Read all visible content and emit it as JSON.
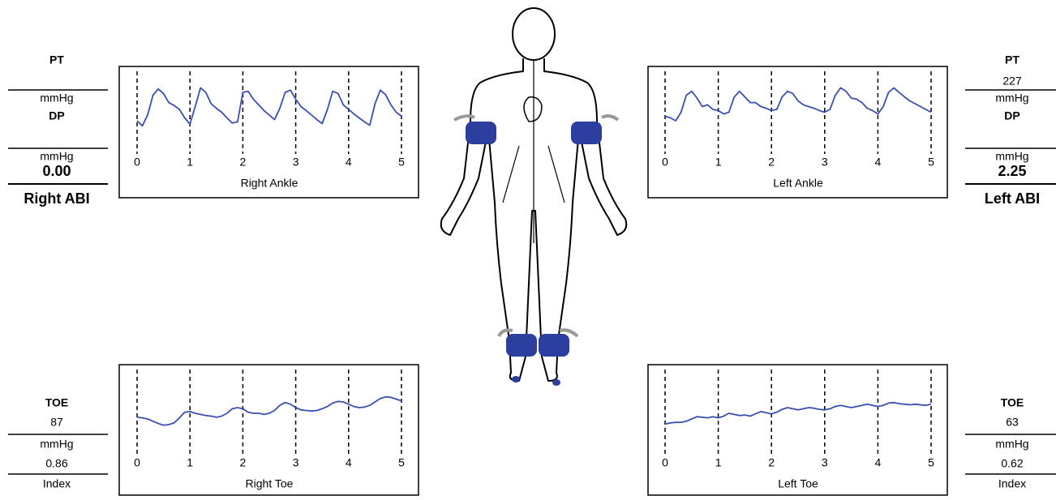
{
  "chart_data": [
    {
      "type": "line",
      "x_label": "Right Ankle",
      "color": "#3a4fb0",
      "xlim": [
        0,
        5
      ],
      "xticks": [
        0,
        1,
        2,
        3,
        4,
        5
      ],
      "ylim": [
        0,
        100
      ],
      "x": [
        0,
        0.1,
        0.2,
        0.3,
        0.4,
        0.5,
        0.6,
        0.7,
        0.8,
        0.9,
        1,
        1.1,
        1.2,
        1.3,
        1.4,
        1.5,
        1.6,
        1.7,
        1.8,
        1.9,
        2,
        2.1,
        2.2,
        2.3,
        2.4,
        2.5,
        2.6,
        2.7,
        2.8,
        2.9,
        3,
        3.1,
        3.2,
        3.3,
        3.4,
        3.5,
        3.6,
        3.7,
        3.8,
        3.9,
        4,
        4.1,
        4.2,
        4.3,
        4.4,
        4.5,
        4.6,
        4.7,
        4.8,
        4.9,
        5
      ],
      "values": [
        30,
        21,
        40,
        75,
        86,
        78,
        62,
        57,
        50,
        35,
        24,
        55,
        88,
        80,
        60,
        52,
        45,
        35,
        26,
        28,
        80,
        82,
        68,
        58,
        48,
        40,
        32,
        52,
        80,
        84,
        68,
        55,
        48,
        40,
        32,
        25,
        50,
        82,
        78,
        58,
        50,
        42,
        35,
        28,
        22,
        60,
        84,
        76,
        58,
        45,
        38
      ]
    },
    {
      "type": "line",
      "x_label": "Left Ankle",
      "color": "#3a4fb0",
      "xlim": [
        0,
        5
      ],
      "xticks": [
        0,
        1,
        2,
        3,
        4,
        5
      ],
      "ylim": [
        0,
        100
      ],
      "x": [
        0,
        0.1,
        0.2,
        0.3,
        0.4,
        0.5,
        0.6,
        0.7,
        0.8,
        0.9,
        1,
        1.1,
        1.2,
        1.3,
        1.4,
        1.5,
        1.6,
        1.7,
        1.8,
        1.9,
        2,
        2.1,
        2.2,
        2.3,
        2.4,
        2.5,
        2.6,
        2.7,
        2.8,
        2.9,
        3,
        3.1,
        3.2,
        3.3,
        3.4,
        3.5,
        3.6,
        3.7,
        3.8,
        3.9,
        4,
        4.1,
        4.2,
        4.3,
        4.4,
        4.5,
        4.6,
        4.7,
        4.8,
        4.9,
        5
      ],
      "values": [
        38,
        35,
        30,
        45,
        75,
        82,
        70,
        55,
        58,
        50,
        48,
        42,
        45,
        72,
        82,
        72,
        62,
        62,
        55,
        52,
        48,
        50,
        72,
        82,
        78,
        65,
        58,
        55,
        52,
        48,
        45,
        50,
        75,
        88,
        82,
        70,
        68,
        62,
        52,
        48,
        42,
        55,
        80,
        88,
        80,
        72,
        65,
        60,
        55,
        50,
        45
      ]
    },
    {
      "type": "line",
      "x_label": "Right Toe",
      "color": "#3a4fb0",
      "xlim": [
        0,
        5
      ],
      "xticks": [
        0,
        1,
        2,
        3,
        4,
        5
      ],
      "ylim": [
        0,
        100
      ],
      "x": [
        0,
        0.1,
        0.2,
        0.3,
        0.4,
        0.5,
        0.6,
        0.7,
        0.8,
        0.9,
        1,
        1.1,
        1.2,
        1.3,
        1.4,
        1.5,
        1.6,
        1.7,
        1.8,
        1.9,
        2,
        2.1,
        2.2,
        2.3,
        2.4,
        2.5,
        2.6,
        2.7,
        2.8,
        2.9,
        3,
        3.1,
        3.2,
        3.3,
        3.4,
        3.5,
        3.6,
        3.7,
        3.8,
        3.9,
        4,
        4.1,
        4.2,
        4.3,
        4.4,
        4.5,
        4.6,
        4.7,
        4.8,
        4.9,
        5
      ],
      "values": [
        43,
        42,
        40,
        36,
        32,
        29,
        30,
        33,
        42,
        52,
        53,
        50,
        48,
        46,
        45,
        43,
        45,
        50,
        58,
        60,
        58,
        52,
        50,
        50,
        48,
        50,
        55,
        64,
        69,
        66,
        60,
        56,
        55,
        54,
        55,
        58,
        62,
        68,
        71,
        70,
        66,
        62,
        60,
        61,
        64,
        70,
        76,
        79,
        78,
        75,
        72
      ]
    },
    {
      "type": "line",
      "x_label": "Left Toe",
      "color": "#3a4fb0",
      "xlim": [
        0,
        5
      ],
      "xticks": [
        0,
        1,
        2,
        3,
        4,
        5
      ],
      "ylim": [
        0,
        100
      ],
      "x": [
        0,
        0.1,
        0.2,
        0.3,
        0.4,
        0.5,
        0.6,
        0.7,
        0.8,
        0.9,
        1,
        1.1,
        1.2,
        1.3,
        1.4,
        1.5,
        1.6,
        1.7,
        1.8,
        1.9,
        2,
        2.1,
        2.2,
        2.3,
        2.4,
        2.5,
        2.6,
        2.7,
        2.8,
        2.9,
        3,
        3.1,
        3.2,
        3.3,
        3.4,
        3.5,
        3.6,
        3.7,
        3.8,
        3.9,
        4,
        4.1,
        4.2,
        4.3,
        4.4,
        4.5,
        4.6,
        4.7,
        4.8,
        4.9,
        5
      ],
      "values": [
        31,
        33,
        34,
        34,
        36,
        40,
        44,
        43,
        42,
        44,
        42,
        45,
        50,
        48,
        46,
        47,
        45,
        49,
        53,
        51,
        49,
        52,
        57,
        60,
        58,
        56,
        58,
        60,
        59,
        57,
        56,
        58,
        62,
        64,
        62,
        60,
        62,
        64,
        66,
        64,
        62,
        64,
        68,
        69,
        67,
        66,
        65,
        66,
        65,
        64,
        66
      ]
    }
  ],
  "right_ankle_panel": {
    "pt_label": "PT",
    "pt_unit": "mmHg",
    "dp_label": "DP",
    "dp_unit": "mmHg",
    "abi": "0.00",
    "abi_label": "Right ABI"
  },
  "left_ankle_panel": {
    "pt_label": "PT",
    "pt_value": "227",
    "pt_unit": "mmHg",
    "dp_label": "DP",
    "dp_unit": "mmHg",
    "abi": "2.25",
    "abi_label": "Left ABI"
  },
  "right_toe_panel": {
    "label": "TOE",
    "pressure": "87",
    "unit": "mmHg",
    "index": "0.86",
    "index_label": "Index"
  },
  "left_toe_panel": {
    "label": "TOE",
    "pressure": "63",
    "unit": "mmHg",
    "index": "0.62",
    "index_label": "Index"
  }
}
